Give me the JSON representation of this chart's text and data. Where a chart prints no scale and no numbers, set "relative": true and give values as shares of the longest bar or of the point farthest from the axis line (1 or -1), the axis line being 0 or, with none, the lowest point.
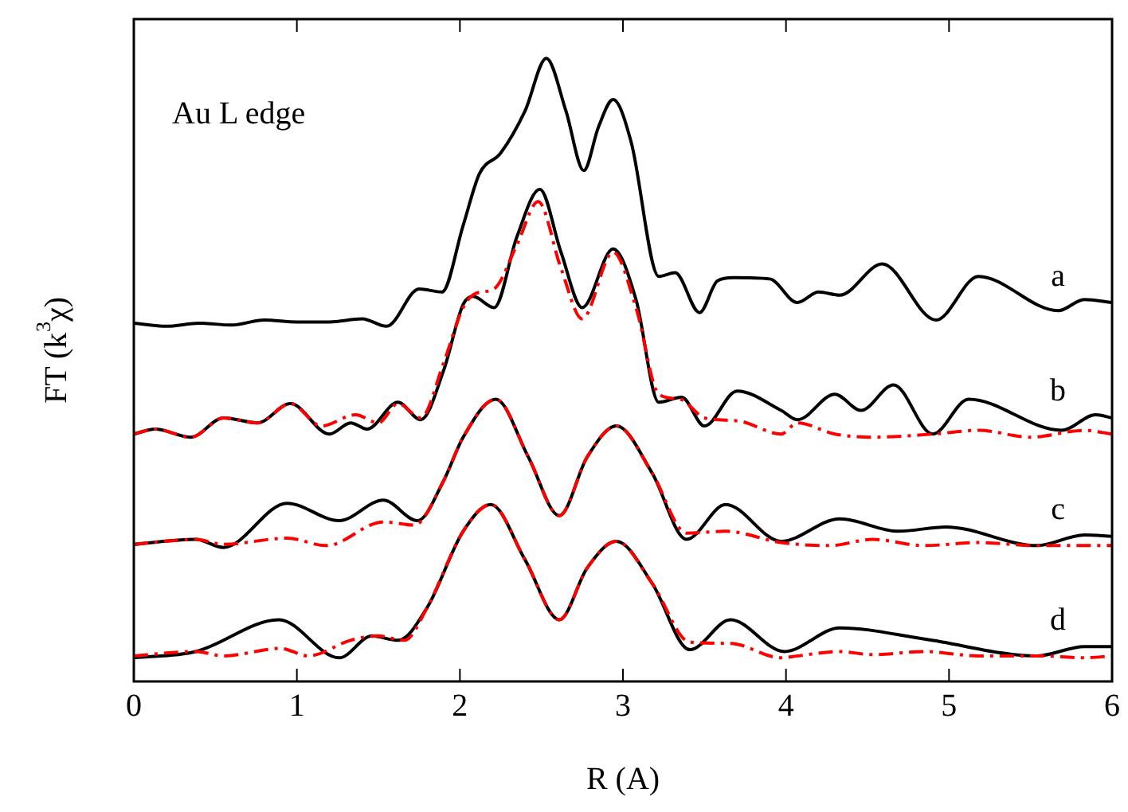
{
  "chart_data": {
    "type": "line",
    "title": "Au L edge",
    "xlabel": "R (A)",
    "ylabel": "FT (k$^{3}$χ)",
    "relative": true,
    "xlim": [
      0,
      6
    ],
    "xticks": [
      0,
      1,
      2,
      3,
      4,
      5,
      6
    ],
    "tick_labels": "x",
    "grid": false,
    "legend": false,
    "marker": "none",
    "line_style": "solid",
    "series": [
      {
        "name": "a",
        "color": "#000000",
        "x": [
          0,
          0.2,
          0.4,
          0.6,
          0.8,
          1.0,
          1.2,
          1.4,
          1.55,
          1.75,
          1.89,
          2.02,
          2.12,
          2.25,
          2.4,
          2.53,
          2.65,
          2.76,
          2.85,
          2.94,
          3.05,
          3.22,
          3.32,
          3.47,
          3.58,
          3.68,
          3.9,
          4.07,
          4.2,
          4.33,
          4.59,
          4.92,
          5.18,
          5.67,
          5.83,
          6
        ],
        "values": [
          0.575,
          0.57,
          0.575,
          0.572,
          0.58,
          0.577,
          0.577,
          0.582,
          0.57,
          0.63,
          0.625,
          0.732,
          0.815,
          0.848,
          0.916,
          1.0,
          0.916,
          0.82,
          0.89,
          0.934,
          0.866,
          0.65,
          0.656,
          0.592,
          0.643,
          0.648,
          0.646,
          0.608,
          0.625,
          0.62,
          0.67,
          0.58,
          0.65,
          0.595,
          0.613,
          0.608
        ]
      },
      {
        "name": "b",
        "color": "#000000",
        "x": [
          0,
          0.13,
          0.35,
          0.55,
          0.76,
          0.96,
          1.2,
          1.33,
          1.43,
          1.62,
          1.76,
          1.9,
          2.02,
          2.08,
          2.21,
          2.35,
          2.49,
          2.62,
          2.75,
          2.94,
          3.08,
          3.22,
          3.36,
          3.5,
          3.7,
          3.97,
          4.07,
          4.3,
          4.46,
          4.66,
          4.9,
          5.12,
          5.69,
          5.9,
          6
        ],
        "values": [
          0.397,
          0.405,
          0.392,
          0.423,
          0.415,
          0.446,
          0.397,
          0.415,
          0.405,
          0.448,
          0.42,
          0.499,
          0.605,
          0.618,
          0.6,
          0.714,
          0.79,
          0.689,
          0.6,
          0.694,
          0.613,
          0.448,
          0.456,
          0.41,
          0.466,
          0.435,
          0.42,
          0.461,
          0.435,
          0.476,
          0.397,
          0.453,
          0.403,
          0.428,
          0.423
        ]
      },
      {
        "color": "#ff0000",
        "line_style": "dashed",
        "x": [
          0,
          0.13,
          0.35,
          0.55,
          0.76,
          0.96,
          1.15,
          1.36,
          1.5,
          1.62,
          1.76,
          1.9,
          2.02,
          2.1,
          2.21,
          2.35,
          2.48,
          2.62,
          2.75,
          2.94,
          3.08,
          3.22,
          3.35,
          3.5,
          3.71,
          3.97,
          4.07,
          4.3,
          4.53,
          4.9,
          5.18,
          5.5,
          5.83,
          6
        ],
        "values": [
          0.397,
          0.405,
          0.392,
          0.423,
          0.415,
          0.446,
          0.41,
          0.428,
          0.415,
          0.446,
          0.423,
          0.511,
          0.6,
          0.623,
          0.63,
          0.701,
          0.77,
          0.663,
          0.582,
          0.689,
          0.6,
          0.461,
          0.453,
          0.423,
          0.418,
          0.397,
          0.415,
          0.397,
          0.392,
          0.397,
          0.403,
          0.392,
          0.403,
          0.397
        ]
      },
      {
        "name": "c",
        "color": "#000000",
        "x": [
          0,
          0.38,
          0.55,
          0.94,
          1.26,
          1.53,
          1.74,
          1.9,
          2.02,
          2.22,
          2.42,
          2.61,
          2.78,
          2.96,
          3.18,
          3.39,
          3.63,
          3.97,
          4.33,
          4.69,
          4.98,
          5.54,
          5.83,
          6
        ],
        "values": [
          0.22,
          0.228,
          0.215,
          0.286,
          0.258,
          0.291,
          0.258,
          0.322,
          0.392,
          0.453,
          0.36,
          0.266,
          0.36,
          0.41,
          0.334,
          0.228,
          0.284,
          0.225,
          0.261,
          0.241,
          0.248,
          0.218,
          0.235,
          0.233
        ]
      },
      {
        "color": "#ff0000",
        "line_style": "dashed",
        "x": [
          0,
          0.38,
          0.55,
          0.94,
          1.18,
          1.53,
          1.72,
          1.9,
          2.02,
          2.22,
          2.42,
          2.61,
          2.78,
          2.96,
          3.18,
          3.39,
          3.63,
          3.97,
          4.27,
          4.53,
          4.85,
          5.18,
          5.54,
          5.83,
          6
        ],
        "values": [
          0.22,
          0.228,
          0.22,
          0.23,
          0.218,
          0.256,
          0.251,
          0.322,
          0.392,
          0.453,
          0.36,
          0.266,
          0.36,
          0.41,
          0.334,
          0.238,
          0.241,
          0.223,
          0.218,
          0.228,
          0.218,
          0.223,
          0.218,
          0.218,
          0.218
        ]
      },
      {
        "name": "d",
        "color": "#000000",
        "x": [
          0,
          0.38,
          0.89,
          1.26,
          1.46,
          1.62,
          1.8,
          2.02,
          2.19,
          2.4,
          2.61,
          2.78,
          2.96,
          3.18,
          3.41,
          3.66,
          3.99,
          4.33,
          4.85,
          5.54,
          5.83,
          6
        ],
        "values": [
          0.038,
          0.048,
          0.099,
          0.038,
          0.073,
          0.066,
          0.119,
          0.241,
          0.284,
          0.195,
          0.099,
          0.182,
          0.225,
          0.157,
          0.051,
          0.099,
          0.048,
          0.086,
          0.068,
          0.041,
          0.056,
          0.056
        ]
      },
      {
        "color": "#ff0000",
        "line_style": "dashed",
        "x": [
          0,
          0.38,
          0.55,
          0.9,
          1.07,
          1.33,
          1.5,
          1.66,
          1.8,
          2.02,
          2.19,
          2.4,
          2.61,
          2.78,
          2.96,
          3.18,
          3.41,
          3.66,
          3.97,
          4.07,
          4.33,
          4.53,
          4.85,
          5.18,
          5.54,
          5.83,
          6
        ],
        "values": [
          0.041,
          0.048,
          0.041,
          0.053,
          0.041,
          0.066,
          0.073,
          0.066,
          0.119,
          0.241,
          0.284,
          0.195,
          0.099,
          0.182,
          0.225,
          0.157,
          0.063,
          0.061,
          0.038,
          0.041,
          0.048,
          0.043,
          0.048,
          0.041,
          0.041,
          0.038,
          0.041
        ]
      }
    ]
  }
}
